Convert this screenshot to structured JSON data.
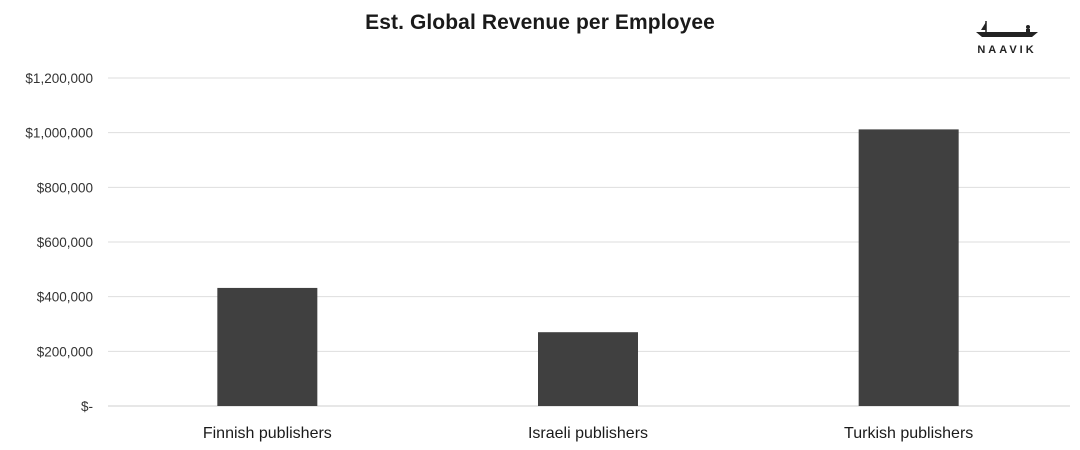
{
  "logo": {
    "name": "NAAVIK",
    "icon": "boat-icon"
  },
  "chart_data": {
    "type": "bar",
    "title": "Est. Global Revenue per Employee",
    "xlabel": "",
    "ylabel": "",
    "categories": [
      "Finnish publishers",
      "Israeli publishers",
      "Turkish publishers"
    ],
    "series": [
      {
        "values": [
          432000,
          270000,
          1012000
        ]
      }
    ],
    "ylim": [
      0,
      1200000
    ],
    "yticks": [
      0,
      200000,
      400000,
      600000,
      800000,
      1000000,
      1200000
    ],
    "ytick_labels": [
      "$-",
      "$200,000",
      "$400,000",
      "$600,000",
      "$800,000",
      "$1,000,000",
      "$1,200,000"
    ],
    "bar_color": "#404040",
    "grid": true,
    "legend": "none"
  }
}
